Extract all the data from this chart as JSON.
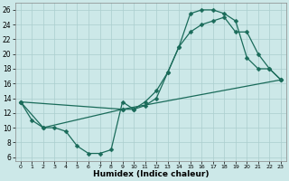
{
  "xlabel": "Humidex (Indice chaleur)",
  "xlim": [
    -0.5,
    23.5
  ],
  "ylim": [
    5.5,
    27
  ],
  "yticks": [
    6,
    8,
    10,
    12,
    14,
    16,
    18,
    20,
    22,
    24,
    26
  ],
  "xticks": [
    0,
    1,
    2,
    3,
    4,
    5,
    6,
    7,
    8,
    9,
    10,
    11,
    12,
    13,
    14,
    15,
    16,
    17,
    18,
    19,
    20,
    21,
    22,
    23
  ],
  "bg_color": "#cce8e8",
  "grid_color": "#aacece",
  "line_color": "#1a6b5a",
  "curve1_x": [
    0,
    1,
    2,
    3,
    4,
    5,
    6,
    7,
    8,
    9,
    10,
    11,
    12,
    13,
    14,
    15,
    16,
    17,
    18,
    19,
    20,
    21,
    22,
    23
  ],
  "curve1_y": [
    13.5,
    11.0,
    10.0,
    10.0,
    9.5,
    7.5,
    6.5,
    6.5,
    7.0,
    13.5,
    12.5,
    13.0,
    14.0,
    17.5,
    21.0,
    25.5,
    26.0,
    26.0,
    25.5,
    24.5,
    19.5,
    18.0,
    18.0,
    16.5
  ],
  "curve2_x": [
    0,
    9,
    10,
    11,
    12,
    13,
    14,
    15,
    16,
    17,
    18,
    19,
    20,
    21,
    22,
    23
  ],
  "curve2_y": [
    13.5,
    12.5,
    12.5,
    13.5,
    15.0,
    17.5,
    21.0,
    23.0,
    24.0,
    24.5,
    25.0,
    23.0,
    23.0,
    20.0,
    18.0,
    16.5
  ],
  "curve3_x": [
    0,
    2,
    9,
    23
  ],
  "curve3_y": [
    13.5,
    10.0,
    12.5,
    16.5
  ]
}
